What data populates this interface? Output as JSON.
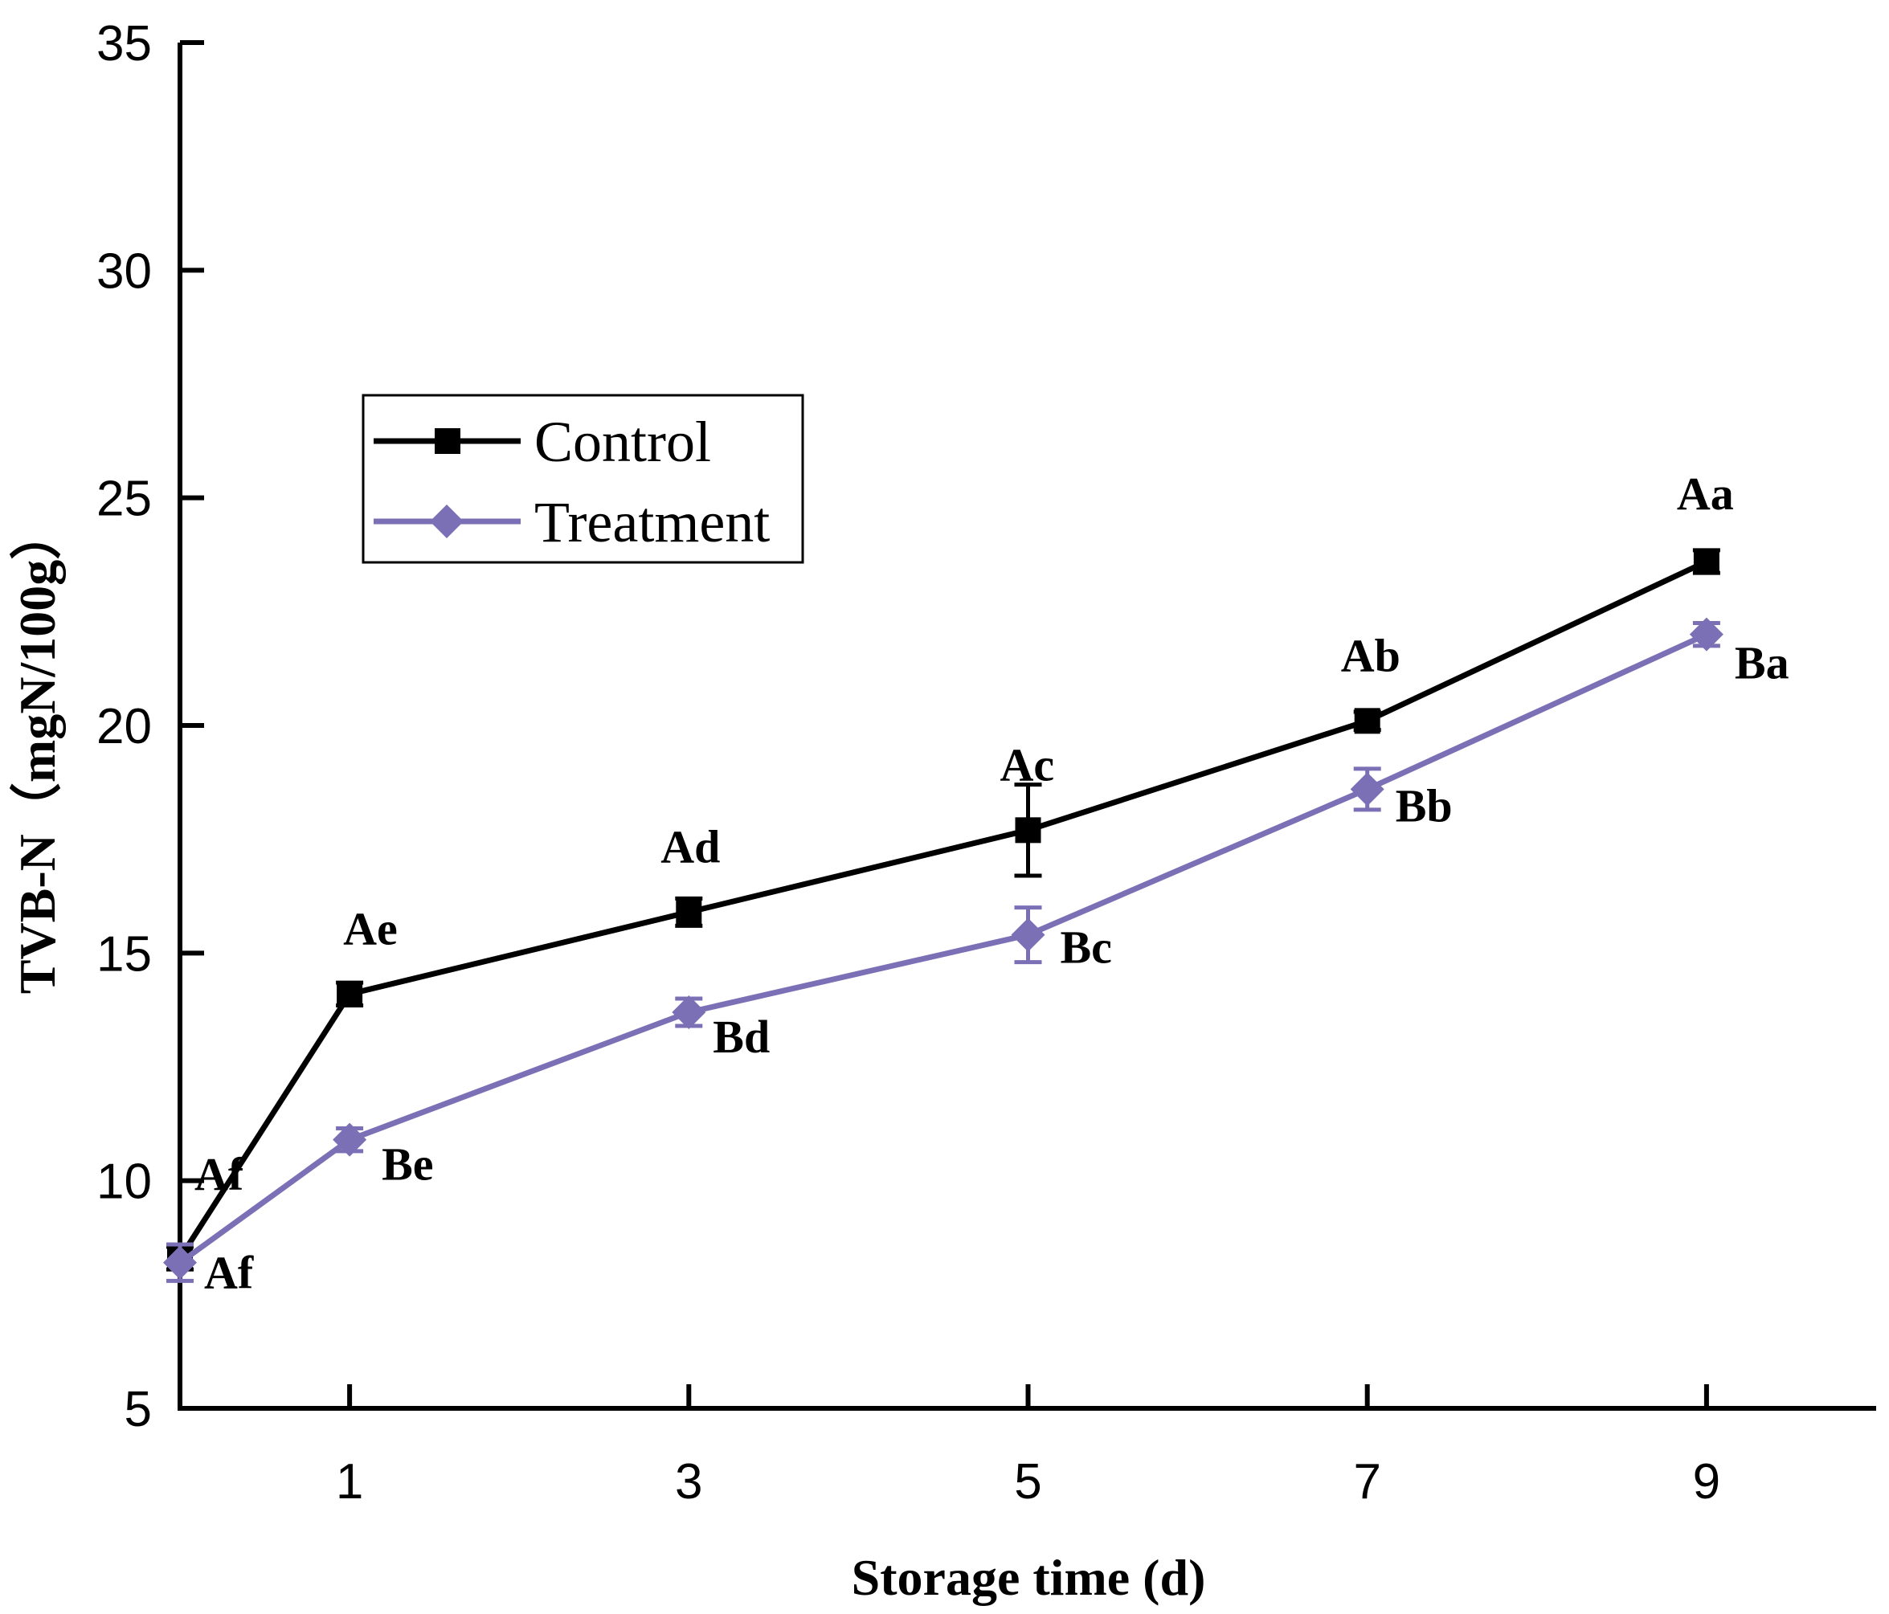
{
  "chart_data": {
    "type": "line",
    "title": "",
    "xlabel": "Storage time (d)",
    "ylabel": "TVB-N（mgN/100g）",
    "xlim": [
      0,
      10
    ],
    "ylim": [
      5,
      35
    ],
    "x_ticks": [
      1,
      3,
      5,
      7,
      9
    ],
    "y_ticks": [
      5,
      10,
      15,
      20,
      25,
      30,
      35
    ],
    "grid": false,
    "legend_position": "upper-left",
    "series": [
      {
        "name": "Control",
        "color": "#000000",
        "marker": "square",
        "x": [
          0,
          1,
          3,
          5,
          7,
          9
        ],
        "values": [
          8.3,
          14.1,
          15.9,
          17.7,
          20.1,
          23.6
        ],
        "errors": [
          0.25,
          0.25,
          0.3,
          1.0,
          0.2,
          0.25
        ],
        "labels": [
          "Af",
          "Ae",
          "Ad",
          "Ac",
          "Ab",
          "Aa"
        ]
      },
      {
        "name": "Treatment",
        "color": "#7b6fb5",
        "marker": "diamond",
        "x": [
          0,
          1,
          3,
          5,
          7,
          9
        ],
        "values": [
          8.2,
          10.9,
          13.7,
          15.4,
          18.6,
          22.0
        ],
        "errors": [
          0.4,
          0.25,
          0.3,
          0.6,
          0.45,
          0.25
        ],
        "labels": [
          "Af",
          "Be",
          "Bd",
          "Bc",
          "Bb",
          "Ba"
        ]
      }
    ]
  }
}
